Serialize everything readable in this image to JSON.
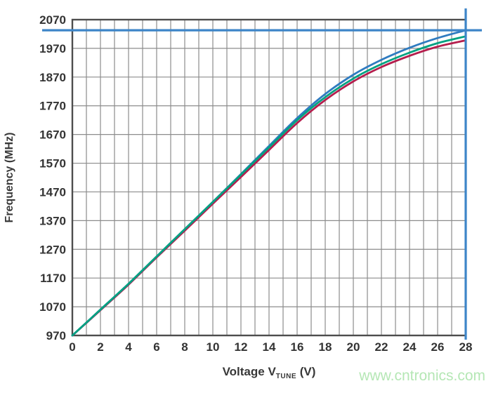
{
  "chart_data": {
    "type": "line",
    "title": "",
    "ylabel": "Frequency (MHz)",
    "xlabel_pre": "Voltage V",
    "xlabel_sub": "TUNE",
    "xlabel_post": " (V)",
    "xlim": [
      0,
      28
    ],
    "ylim": [
      970,
      2070
    ],
    "x_grid_step": 1,
    "x_label_step": 2,
    "y_tick_step": 100,
    "grid": true,
    "legend_position": "none",
    "x": [
      0,
      2,
      4,
      6,
      8,
      10,
      12,
      14,
      16,
      18,
      20,
      22,
      24,
      26,
      28
    ],
    "series": [
      {
        "name": "curve-red",
        "color": "#b51e4d",
        "values": [
          970,
          1058,
          1147,
          1242,
          1335,
          1429,
          1522,
          1616,
          1710,
          1790,
          1855,
          1905,
          1944,
          1976,
          1998
        ]
      },
      {
        "name": "curve-blue",
        "color": "#2f7bc0",
        "values": [
          970,
          1060,
          1150,
          1245,
          1340,
          1435,
          1532,
          1630,
          1727,
          1811,
          1878,
          1930,
          1972,
          2006,
          2033
        ]
      },
      {
        "name": "curve-green",
        "color": "#00a181",
        "values": [
          970,
          1060,
          1150,
          1245,
          1340,
          1435,
          1530,
          1625,
          1720,
          1800,
          1865,
          1915,
          1955,
          1988,
          2012
        ]
      }
    ],
    "marker_lines": {
      "horizontal_mhz": 2033,
      "vertical_v": 28,
      "color": "#3d85c8"
    },
    "grid_color": "#8c8c8c",
    "border_color": "#4d4d4d",
    "tick_label_color": "#333333"
  },
  "watermark": {
    "text": "www.cntronics.com",
    "color": "#b5e7b5"
  }
}
